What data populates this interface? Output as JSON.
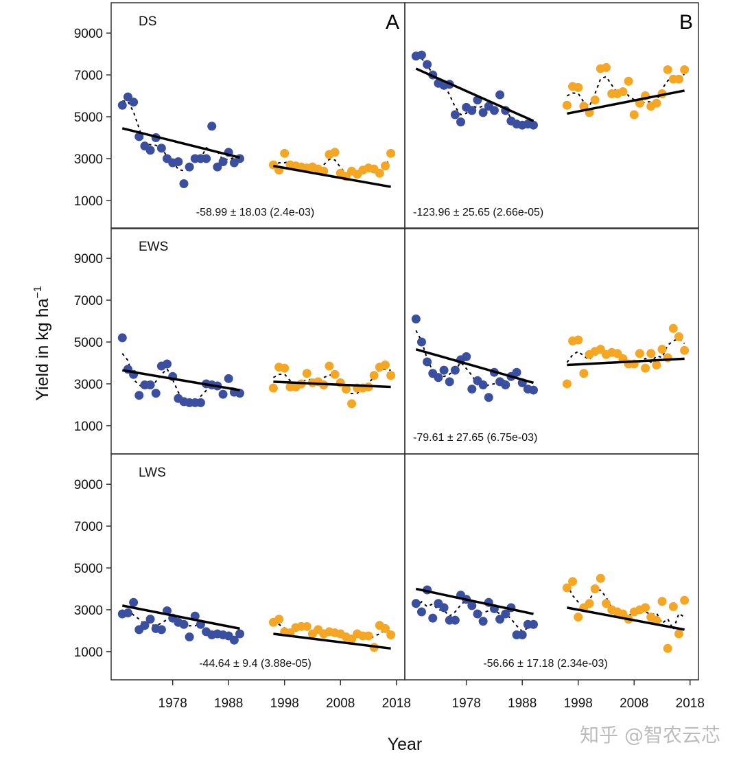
{
  "chart_data": {
    "type": "scatter",
    "xlabel": "Year",
    "ylabel": "Yield in kg ha",
    "ylabel_superscript": "−1",
    "x_ticks": [
      1978,
      1988,
      1998,
      2008,
      2018
    ],
    "y_ticks": [
      1000,
      3000,
      5000,
      7000,
      9000
    ],
    "xlim": [
      1967,
      2019.5
    ],
    "ylim": [
      -350,
      10450
    ],
    "grid": false,
    "colors": {
      "period1": "#3b4fa0",
      "period2": "#f5a623",
      "trend": "#000000",
      "smooth": "#000000"
    },
    "panel_letters": [
      "A",
      "B"
    ],
    "panels": [
      {
        "row": 0,
        "col": 0,
        "season": "DS",
        "letter": "A",
        "annotation": "-58.99 ± 18.03 (2.4e-03)",
        "series": [
          {
            "start_year": 1969,
            "values": [
              5550,
              5950,
              5700,
              4050,
              3600,
              3400,
              4000,
              3500,
              3000,
              2800,
              2850,
              1800,
              2600,
              3000,
              3000,
              3000,
              4550,
              2600,
              2850,
              3300,
              2800,
              3000
            ],
            "trend": [
              [
                1969,
                4450
              ],
              [
                1990,
                3050
              ]
            ]
          },
          {
            "start_year": 1996,
            "values": [
              2700,
              2450,
              3250,
              2700,
              2650,
              2600,
              2550,
              2600,
              2500,
              2400,
              3200,
              3300,
              2300,
              2150,
              2400,
              2250,
              2450,
              2550,
              2500,
              2300,
              2650,
              3250
            ],
            "trend": [
              [
                1996,
                2650
              ],
              [
                2017,
                1650
              ]
            ]
          }
        ]
      },
      {
        "row": 0,
        "col": 1,
        "season": "",
        "letter": "B",
        "annotation": "-123.96 ± 25.65 (2.66e-05)",
        "series": [
          {
            "start_year": 1969,
            "values": [
              7900,
              7950,
              7500,
              7000,
              6600,
              6500,
              6550,
              5100,
              4750,
              5450,
              5300,
              5800,
              5200,
              5500,
              5300,
              6050,
              5300,
              4800,
              4650,
              4600,
              4650,
              4600
            ],
            "trend": [
              [
                1969,
                7300
              ],
              [
                1990,
                4800
              ]
            ]
          },
          {
            "start_year": 1996,
            "values": [
              5550,
              6450,
              6400,
              5500,
              5200,
              5800,
              7300,
              7350,
              6100,
              6100,
              6200,
              6700,
              5100,
              5650,
              6000,
              5500,
              5650,
              6100,
              7250,
              6800,
              6800,
              7250
            ],
            "trend": [
              [
                1996,
                5150
              ],
              [
                2017,
                6250
              ]
            ]
          }
        ]
      },
      {
        "row": 1,
        "col": 0,
        "season": "EWS",
        "letter": "",
        "annotation": "",
        "series": [
          {
            "start_year": 1969,
            "values": [
              5200,
              3700,
              3450,
              2450,
              2950,
              2950,
              2550,
              3850,
              3950,
              3350,
              2300,
              2150,
              2100,
              2100,
              2100,
              3000,
              2950,
              2900,
              2500,
              3250,
              2600,
              2550
            ],
            "trend": [
              [
                1969,
                3650
              ],
              [
                1990,
                2700
              ]
            ]
          },
          {
            "start_year": 1996,
            "values": [
              2800,
              3800,
              3750,
              2850,
              2850,
              3000,
              3500,
              3050,
              3100,
              2950,
              3850,
              3450,
              3050,
              2750,
              2050,
              2800,
              2800,
              2850,
              3400,
              3800,
              3900,
              3400
            ],
            "trend": [
              [
                1996,
                3100
              ],
              [
                2017,
                2850
              ]
            ]
          }
        ]
      },
      {
        "row": 1,
        "col": 1,
        "season": "",
        "letter": "",
        "annotation": "-79.61 ± 27.65 (6.75e-03)",
        "series": [
          {
            "start_year": 1969,
            "values": [
              6100,
              5000,
              4050,
              3500,
              3300,
              3650,
              3100,
              3650,
              4150,
              4300,
              2750,
              3150,
              2950,
              2350,
              3550,
              3100,
              2950,
              3350,
              3550,
              3050,
              2750,
              2700
            ],
            "trend": [
              [
                1969,
                4650
              ],
              [
                1990,
                3050
              ]
            ]
          },
          {
            "start_year": 1996,
            "values": [
              3000,
              5050,
              5100,
              3500,
              4400,
              4550,
              4650,
              4400,
              4500,
              4450,
              4200,
              3950,
              3950,
              4450,
              3750,
              4450,
              3900,
              4650,
              4250,
              5650,
              5250,
              4600
            ],
            "trend": [
              [
                1996,
                3900
              ],
              [
                2017,
                4200
              ]
            ]
          }
        ]
      },
      {
        "row": 2,
        "col": 0,
        "season": "LWS",
        "letter": "",
        "annotation": "-44.64 ± 9.4 (3.88e-05)",
        "series": [
          {
            "start_year": 1969,
            "values": [
              2800,
              2850,
              3350,
              2050,
              2250,
              2550,
              2100,
              2050,
              2950,
              2600,
              2400,
              2300,
              1700,
              2700,
              2300,
              1950,
              1800,
              1850,
              1800,
              1750,
              1550,
              1850
            ],
            "trend": [
              [
                1969,
                3200
              ],
              [
                1990,
                2100
              ]
            ]
          },
          {
            "start_year": 1996,
            "values": [
              2400,
              2550,
              1950,
              1900,
              2150,
              2200,
              2200,
              1850,
              2050,
              1850,
              1950,
              1900,
              1850,
              1700,
              1600,
              1850,
              1750,
              1750,
              1200,
              2250,
              2100,
              1800
            ],
            "trend": [
              [
                1996,
                1850
              ],
              [
                2017,
                1150
              ]
            ]
          }
        ]
      },
      {
        "row": 2,
        "col": 1,
        "season": "",
        "letter": "",
        "annotation": "-56.66 ± 17.18 (2.34e-03)",
        "series": [
          {
            "start_year": 1969,
            "values": [
              3300,
              2900,
              3950,
              2600,
              3300,
              3100,
              2500,
              2500,
              3700,
              3500,
              3200,
              2800,
              2450,
              3350,
              3050,
              2550,
              2800,
              3100,
              1800,
              1800,
              2300,
              2300
            ],
            "trend": [
              [
                1969,
                4000
              ],
              [
                1990,
                2800
              ]
            ]
          },
          {
            "start_year": 1996,
            "values": [
              4050,
              4350,
              2650,
              3100,
              3300,
              4000,
              4500,
              3300,
              3000,
              2900,
              2800,
              2550,
              2900,
              3000,
              3100,
              2650,
              2500,
              3400,
              1150,
              3150,
              1850,
              3450
            ],
            "trend": [
              [
                1996,
                3100
              ],
              [
                2017,
                2050
              ]
            ]
          }
        ]
      }
    ]
  },
  "watermark": "知乎 @智农云芯"
}
